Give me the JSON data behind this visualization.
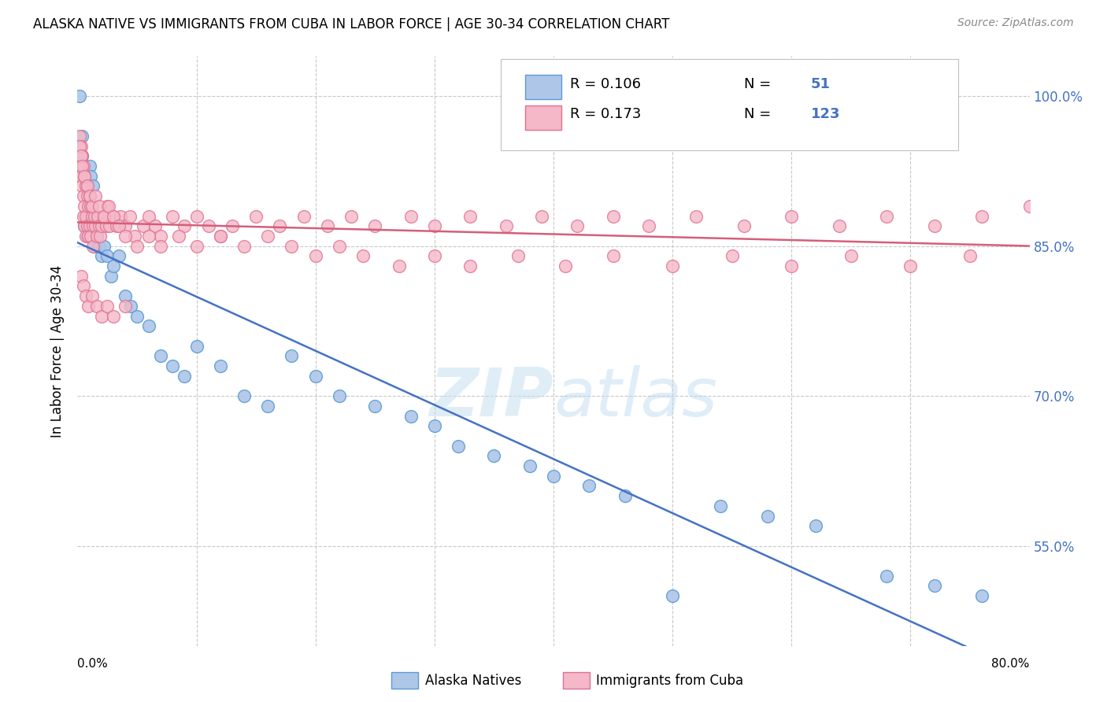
{
  "title": "ALASKA NATIVE VS IMMIGRANTS FROM CUBA IN LABOR FORCE | AGE 30-34 CORRELATION CHART",
  "source": "Source: ZipAtlas.com",
  "ylabel": "In Labor Force | Age 30-34",
  "ytick_labels": [
    "55.0%",
    "70.0%",
    "85.0%",
    "100.0%"
  ],
  "ytick_values": [
    0.55,
    0.7,
    0.85,
    1.0
  ],
  "xlim": [
    0.0,
    0.8
  ],
  "ylim": [
    0.45,
    1.04
  ],
  "color_blue": "#aec6e8",
  "color_pink": "#f4b8c8",
  "color_blue_edge": "#5b9bd5",
  "color_pink_edge": "#e07090",
  "color_blue_line": "#4472c4",
  "color_pink_line": "#d45f7a",
  "color_n": "#4472c4",
  "background_color": "#ffffff",
  "grid_color": "#c8c8c8",
  "alaska_x": [
    0.002,
    0.004,
    0.004,
    0.006,
    0.007,
    0.008,
    0.009,
    0.01,
    0.011,
    0.012,
    0.013,
    0.014,
    0.015,
    0.016,
    0.018,
    0.02,
    0.022,
    0.025,
    0.028,
    0.03,
    0.035,
    0.04,
    0.045,
    0.05,
    0.06,
    0.07,
    0.08,
    0.09,
    0.1,
    0.12,
    0.14,
    0.16,
    0.18,
    0.2,
    0.22,
    0.25,
    0.28,
    0.3,
    0.32,
    0.35,
    0.38,
    0.4,
    0.43,
    0.46,
    0.5,
    0.54,
    0.58,
    0.62,
    0.68,
    0.72,
    0.76
  ],
  "alaska_y": [
    1.0,
    0.96,
    0.94,
    0.93,
    0.92,
    0.91,
    0.91,
    0.9,
    0.89,
    0.89,
    0.88,
    0.88,
    0.87,
    0.87,
    0.86,
    0.85,
    0.85,
    0.84,
    0.84,
    0.83,
    0.82,
    0.82,
    0.81,
    0.81,
    0.8,
    0.79,
    0.78,
    0.77,
    0.76,
    0.75,
    0.74,
    0.73,
    0.72,
    0.71,
    0.71,
    0.7,
    0.69,
    0.68,
    0.67,
    0.66,
    0.65,
    0.65,
    0.64,
    0.62,
    0.61,
    0.6,
    0.59,
    0.57,
    0.52,
    0.51,
    0.5
  ],
  "alaska_y_scatter": [
    1.0,
    0.96,
    0.94,
    0.87,
    0.91,
    0.86,
    0.88,
    0.93,
    0.92,
    0.87,
    0.91,
    0.85,
    0.87,
    0.86,
    0.85,
    0.84,
    0.85,
    0.84,
    0.82,
    0.83,
    0.84,
    0.8,
    0.79,
    0.78,
    0.77,
    0.74,
    0.73,
    0.72,
    0.75,
    0.73,
    0.7,
    0.69,
    0.74,
    0.72,
    0.7,
    0.69,
    0.68,
    0.67,
    0.65,
    0.64,
    0.63,
    0.62,
    0.61,
    0.6,
    0.5,
    0.59,
    0.58,
    0.57,
    0.52,
    0.51,
    0.5
  ],
  "cuba_x": [
    0.001,
    0.002,
    0.003,
    0.003,
    0.004,
    0.004,
    0.005,
    0.005,
    0.005,
    0.006,
    0.006,
    0.006,
    0.007,
    0.007,
    0.007,
    0.008,
    0.008,
    0.009,
    0.009,
    0.01,
    0.01,
    0.011,
    0.011,
    0.012,
    0.013,
    0.013,
    0.014,
    0.015,
    0.016,
    0.017,
    0.018,
    0.019,
    0.02,
    0.022,
    0.024,
    0.025,
    0.027,
    0.03,
    0.033,
    0.036,
    0.04,
    0.044,
    0.048,
    0.055,
    0.06,
    0.065,
    0.07,
    0.08,
    0.09,
    0.1,
    0.11,
    0.12,
    0.13,
    0.15,
    0.17,
    0.19,
    0.21,
    0.23,
    0.25,
    0.28,
    0.3,
    0.33,
    0.36,
    0.39,
    0.42,
    0.45,
    0.48,
    0.52,
    0.56,
    0.6,
    0.64,
    0.68,
    0.72,
    0.76,
    0.8,
    0.002,
    0.003,
    0.004,
    0.006,
    0.008,
    0.01,
    0.012,
    0.015,
    0.018,
    0.022,
    0.026,
    0.03,
    0.035,
    0.04,
    0.05,
    0.06,
    0.07,
    0.085,
    0.1,
    0.12,
    0.14,
    0.16,
    0.18,
    0.2,
    0.22,
    0.24,
    0.27,
    0.3,
    0.33,
    0.37,
    0.41,
    0.45,
    0.5,
    0.55,
    0.6,
    0.65,
    0.7,
    0.75,
    0.003,
    0.005,
    0.007,
    0.009,
    0.012,
    0.016,
    0.02,
    0.025,
    0.03,
    0.04
  ],
  "cuba_y": [
    0.93,
    0.96,
    0.95,
    0.92,
    0.94,
    0.91,
    0.93,
    0.9,
    0.88,
    0.92,
    0.89,
    0.87,
    0.91,
    0.88,
    0.86,
    0.9,
    0.87,
    0.89,
    0.86,
    0.9,
    0.87,
    0.89,
    0.86,
    0.88,
    0.87,
    0.85,
    0.88,
    0.87,
    0.86,
    0.88,
    0.87,
    0.86,
    0.87,
    0.88,
    0.87,
    0.89,
    0.87,
    0.88,
    0.87,
    0.88,
    0.87,
    0.88,
    0.86,
    0.87,
    0.88,
    0.87,
    0.86,
    0.88,
    0.87,
    0.88,
    0.87,
    0.86,
    0.87,
    0.88,
    0.87,
    0.88,
    0.87,
    0.88,
    0.87,
    0.88,
    0.87,
    0.88,
    0.87,
    0.88,
    0.87,
    0.88,
    0.87,
    0.88,
    0.87,
    0.88,
    0.87,
    0.88,
    0.87,
    0.88,
    0.89,
    0.95,
    0.94,
    0.93,
    0.92,
    0.91,
    0.9,
    0.89,
    0.9,
    0.89,
    0.88,
    0.89,
    0.88,
    0.87,
    0.86,
    0.85,
    0.86,
    0.85,
    0.86,
    0.85,
    0.86,
    0.85,
    0.86,
    0.85,
    0.84,
    0.85,
    0.84,
    0.83,
    0.84,
    0.83,
    0.84,
    0.83,
    0.84,
    0.83,
    0.84,
    0.83,
    0.84,
    0.83,
    0.84,
    0.82,
    0.81,
    0.8,
    0.79,
    0.8,
    0.79,
    0.78,
    0.79,
    0.78,
    0.79
  ]
}
